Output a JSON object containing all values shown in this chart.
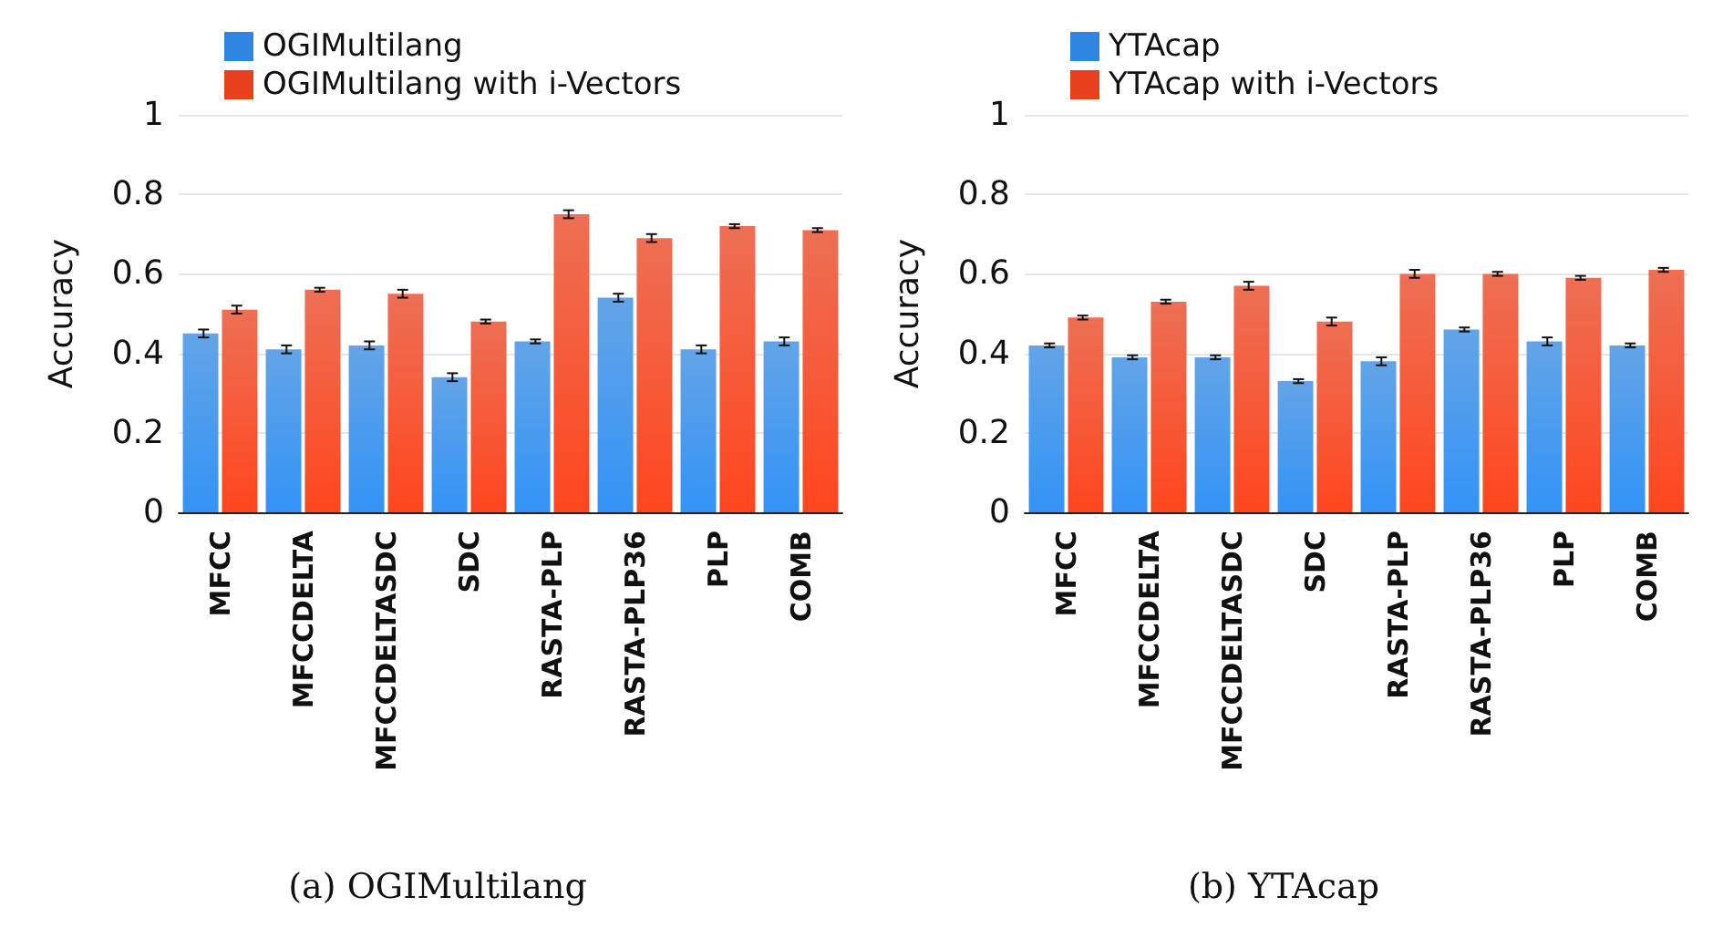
{
  "chart_data": [
    {
      "type": "bar",
      "title": "(a) OGIMultilang",
      "ylabel": "Accuracy",
      "categories": [
        "MFCC",
        "MFCCDELTA",
        "MFCCDELTASDC",
        "SDC",
        "RASTA-PLP",
        "RASTA-PLP36",
        "PLP",
        "COMB"
      ],
      "series": [
        {
          "name": "OGIMultilang",
          "color": "#2f86e0",
          "values": [
            0.45,
            0.41,
            0.42,
            0.34,
            0.43,
            0.54,
            0.41,
            0.43
          ],
          "errors": [
            0.01,
            0.01,
            0.01,
            0.01,
            0.005,
            0.01,
            0.01,
            0.01
          ]
        },
        {
          "name": "OGIMultilang with i-Vectors",
          "color": "#e8401c",
          "values": [
            0.51,
            0.56,
            0.55,
            0.48,
            0.75,
            0.69,
            0.72,
            0.71
          ],
          "errors": [
            0.01,
            0.005,
            0.01,
            0.005,
            0.01,
            0.01,
            0.005,
            0.005
          ]
        }
      ],
      "ylim": [
        0,
        1
      ],
      "yticks": [
        0,
        0.2,
        0.4,
        0.6,
        0.8,
        1
      ],
      "grid": "y",
      "legend": "top"
    },
    {
      "type": "bar",
      "title": "(b) YTAcap",
      "ylabel": "Accuracy",
      "categories": [
        "MFCC",
        "MFCCDELTA",
        "MFCCDELTASDC",
        "SDC",
        "RASTA-PLP",
        "RASTA-PLP36",
        "PLP",
        "COMB"
      ],
      "series": [
        {
          "name": "YTAcap",
          "color": "#2f86e0",
          "values": [
            0.42,
            0.39,
            0.39,
            0.33,
            0.38,
            0.46,
            0.43,
            0.42
          ],
          "errors": [
            0.005,
            0.005,
            0.005,
            0.005,
            0.01,
            0.005,
            0.01,
            0.005
          ]
        },
        {
          "name": "YTAcap with i-Vectors",
          "color": "#e8401c",
          "values": [
            0.49,
            0.53,
            0.57,
            0.48,
            0.6,
            0.6,
            0.59,
            0.61
          ],
          "errors": [
            0.005,
            0.005,
            0.01,
            0.01,
            0.01,
            0.005,
            0.005,
            0.005
          ]
        }
      ],
      "ylim": [
        0,
        1
      ],
      "yticks": [
        0,
        0.2,
        0.4,
        0.6,
        0.8,
        1
      ],
      "grid": "y",
      "legend": "top"
    }
  ]
}
